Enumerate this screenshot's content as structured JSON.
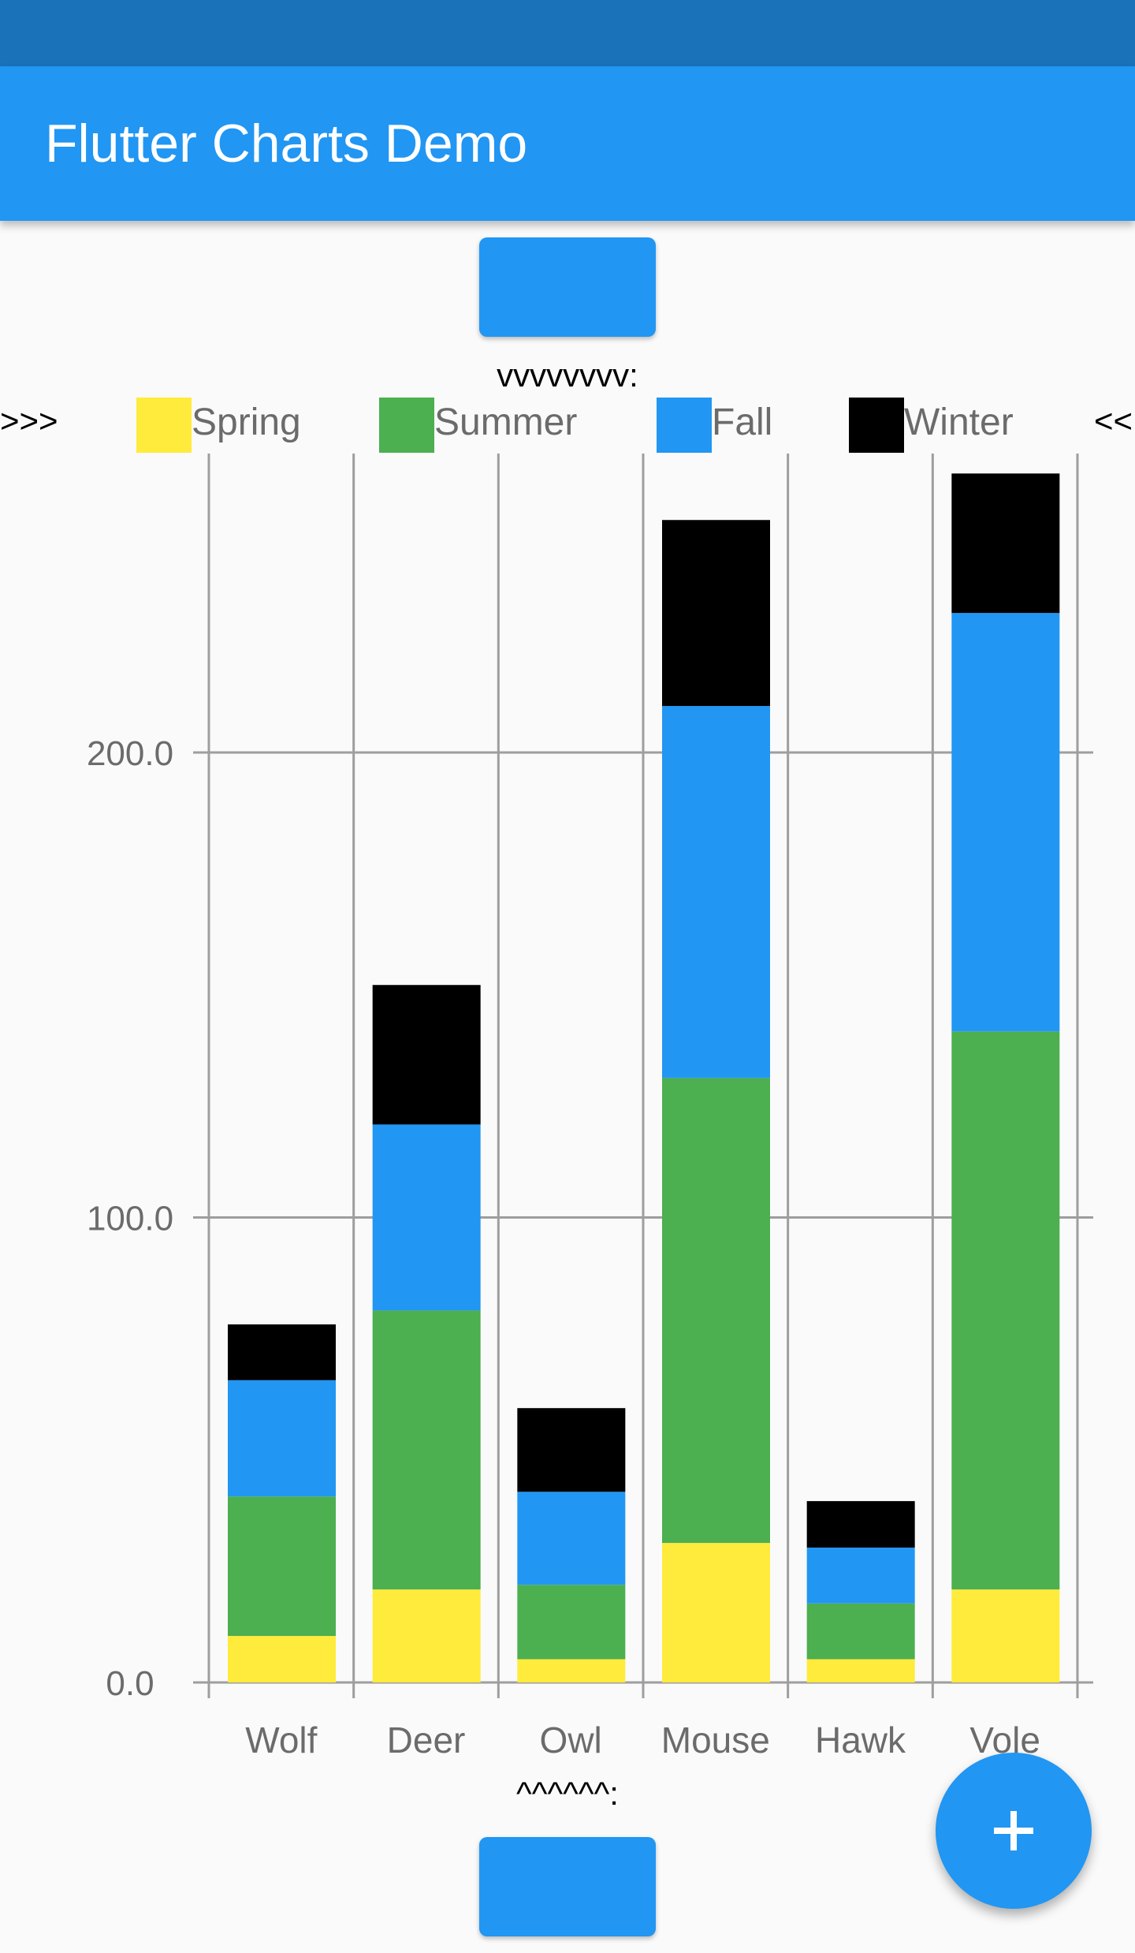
{
  "app": {
    "title": "Flutter Charts Demo"
  },
  "markers": {
    "top": "vvvvvvvv:",
    "bottom": "^^^^^^:",
    "left": ">>>",
    "right": "<<"
  },
  "buttons": {
    "top_label": "",
    "bottom_label": ""
  },
  "fab": {
    "icon": "plus-icon"
  },
  "colors": {
    "primary": "#2196f3",
    "status_bar": "#1a72b9"
  },
  "chart_data": {
    "type": "bar",
    "stacked": true,
    "categories": [
      "Wolf",
      "Deer",
      "Owl",
      "Mouse",
      "Hawk",
      "Vole"
    ],
    "series": [
      {
        "name": "Spring",
        "color": "#ffeb3b",
        "values": [
          10,
          20,
          5,
          30,
          5,
          20
        ]
      },
      {
        "name": "Summer",
        "color": "#4caf50",
        "values": [
          30,
          60,
          16,
          100,
          12,
          120
        ]
      },
      {
        "name": "Fall",
        "color": "#2196f3",
        "values": [
          25,
          40,
          20,
          80,
          12,
          90
        ]
      },
      {
        "name": "Winter",
        "color": "#000000",
        "values": [
          12,
          30,
          18,
          40,
          10,
          30
        ]
      }
    ],
    "y_ticks": [
      "0.0",
      "100.0",
      "200.0"
    ],
    "y_tick_values": [
      0,
      100,
      200
    ],
    "ylim": [
      0,
      265
    ],
    "grid": true,
    "legend_position": "top"
  }
}
